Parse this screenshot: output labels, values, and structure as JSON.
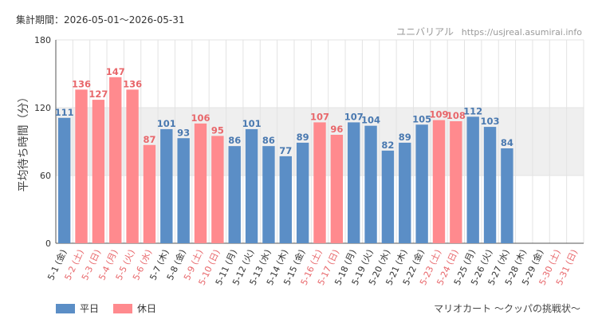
{
  "header": {
    "period_text": "集計期間：2026-05-01～2026-05-31",
    "brand": "ユニバリアル",
    "url": "https://usjreal.asumirai.info"
  },
  "footer": {
    "attraction": "マリオカート ～クッパの挑戦状～"
  },
  "colors": {
    "weekday": "#5b8ec6",
    "holiday": "#ff8a8e",
    "weekday_text": "#4a79b0",
    "holiday_text": "#e8676b",
    "band": "#efefef",
    "grid": "#e3e3e3"
  },
  "chart_data": {
    "type": "bar",
    "ylabel": "平均待ち時間（分）",
    "ylim": [
      0,
      180
    ],
    "yticks": [
      0,
      60,
      120,
      180
    ],
    "band": [
      60,
      120
    ],
    "categories": [
      "5-1 (金)",
      "5-2 (土)",
      "5-3 (日)",
      "5-4 (月)",
      "5-5 (火)",
      "5-6 (水)",
      "5-7 (木)",
      "5-8 (金)",
      "5-9 (土)",
      "5-10 (日)",
      "5-11 (月)",
      "5-12 (火)",
      "5-13 (水)",
      "5-14 (木)",
      "5-15 (金)",
      "5-16 (土)",
      "5-17 (日)",
      "5-18 (月)",
      "5-19 (火)",
      "5-20 (水)",
      "5-21 (木)",
      "5-22 (金)",
      "5-23 (土)",
      "5-24 (日)",
      "5-25 (月)",
      "5-26 (火)",
      "5-27 (水)",
      "5-28 (木)",
      "5-29 (金)",
      "5-30 (土)",
      "5-31 (日)"
    ],
    "values": [
      111,
      136,
      127,
      147,
      136,
      87,
      101,
      93,
      106,
      95,
      86,
      101,
      86,
      77,
      89,
      107,
      96,
      107,
      104,
      82,
      89,
      105,
      109,
      108,
      112,
      103,
      84,
      null,
      null,
      null,
      null
    ],
    "day_type": [
      "weekday",
      "holiday",
      "holiday",
      "holiday",
      "holiday",
      "holiday",
      "weekday",
      "weekday",
      "holiday",
      "holiday",
      "weekday",
      "weekday",
      "weekday",
      "weekday",
      "weekday",
      "holiday",
      "holiday",
      "weekday",
      "weekday",
      "weekday",
      "weekday",
      "weekday",
      "holiday",
      "holiday",
      "weekday",
      "weekday",
      "weekday",
      "weekday",
      "weekday",
      "holiday",
      "holiday"
    ],
    "legend": [
      {
        "key": "weekday",
        "label": "平日"
      },
      {
        "key": "holiday",
        "label": "休日"
      }
    ],
    "legend_position": "bottom-left",
    "grid": true
  }
}
